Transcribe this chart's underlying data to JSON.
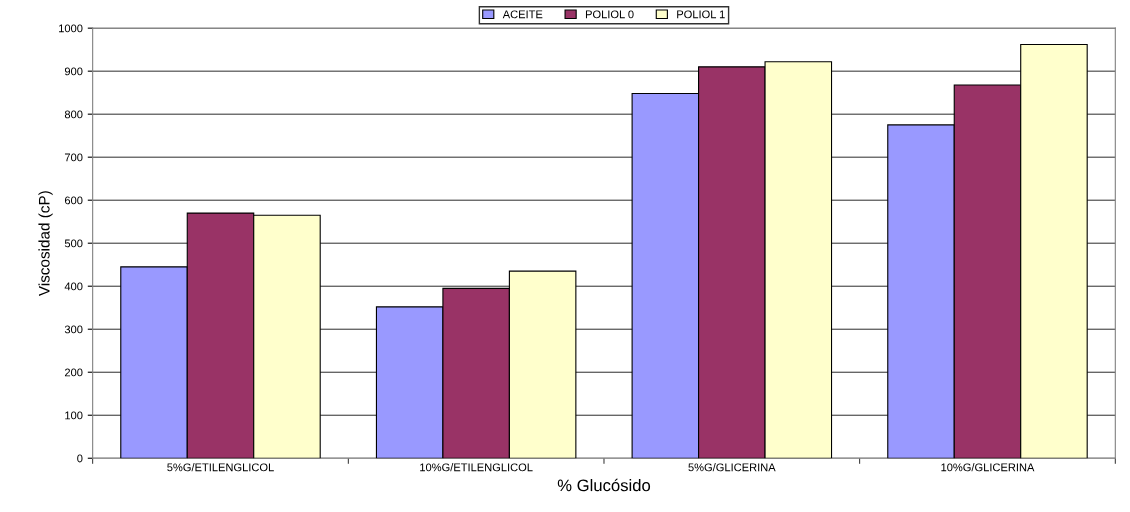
{
  "chart_data": {
    "type": "bar",
    "xlabel": "% Glucósido",
    "ylabel": "Viscosidad (cP)",
    "categories": [
      "5%G/ETILENGLICOL",
      "10%G/ETILENGLICOL",
      "5%G/GLICERINA",
      "10%G/GLICERINA"
    ],
    "series": [
      {
        "name": "ACEITE",
        "color": "#9999ff",
        "values": [
          445,
          352,
          848,
          775
        ]
      },
      {
        "name": "POLIOL 0",
        "color": "#993366",
        "values": [
          570,
          395,
          910,
          868
        ]
      },
      {
        "name": "POLIOL 1",
        "color": "#ffffcc",
        "values": [
          565,
          435,
          922,
          962
        ]
      }
    ],
    "ylim": [
      0,
      1000
    ],
    "yticks": [
      0,
      100,
      200,
      300,
      400,
      500,
      600,
      700,
      800,
      900,
      1000
    ],
    "grid": "y",
    "legend": "top"
  }
}
